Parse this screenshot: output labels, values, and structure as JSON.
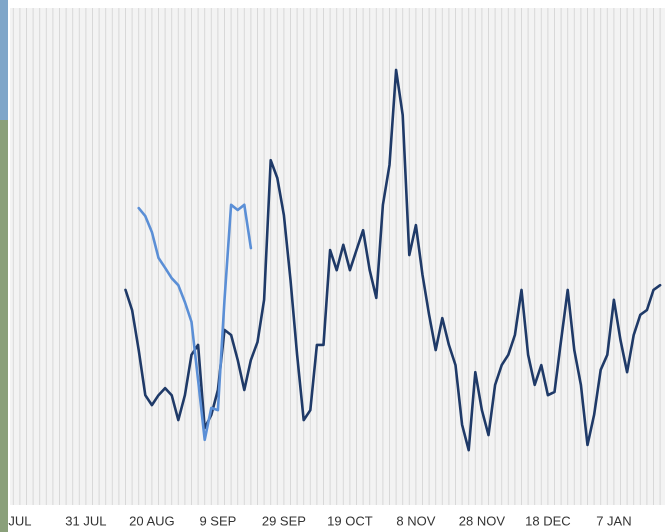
{
  "chart_data": {
    "type": "line",
    "categories": [
      null,
      "JUL",
      null,
      null,
      null,
      null,
      null,
      null,
      null,
      null,
      null,
      "31 JUL",
      null,
      null,
      null,
      null,
      null,
      null,
      null,
      null,
      null,
      "20 AUG",
      null,
      null,
      null,
      null,
      null,
      null,
      null,
      null,
      null,
      "9 SEP",
      null,
      null,
      null,
      null,
      null,
      null,
      null,
      null,
      null,
      "29 SEP",
      null,
      null,
      null,
      null,
      null,
      null,
      null,
      null,
      null,
      "19 OCT",
      null,
      null,
      null,
      null,
      null,
      null,
      null,
      null,
      null,
      "8 NOV",
      null,
      null,
      null,
      null,
      null,
      null,
      null,
      null,
      null,
      "28 NOV",
      null,
      null,
      null,
      null,
      null,
      null,
      null,
      null,
      null,
      "18 DEC",
      null,
      null,
      null,
      null,
      null,
      null,
      null,
      null,
      null,
      "7 JAN",
      null,
      null,
      null,
      null,
      null,
      null,
      null
    ],
    "series": [
      {
        "color": "#1f3a68",
        "values": [
          null,
          null,
          null,
          null,
          null,
          null,
          null,
          null,
          null,
          null,
          null,
          null,
          null,
          null,
          null,
          null,
          null,
          44.7,
          40.4,
          31.9,
          22.3,
          20.2,
          22.3,
          23.8,
          22.3,
          17,
          22.3,
          30.9,
          33,
          15.3,
          18.1,
          23.4,
          36.2,
          35.1,
          29.8,
          23.4,
          29.8,
          33.6,
          42.6,
          72.3,
          68.5,
          60.6,
          46.8,
          30.9,
          17,
          19.1,
          33,
          33,
          53.2,
          48.9,
          54.3,
          48.9,
          53.2,
          57.4,
          48.9,
          43,
          62.8,
          71.3,
          91.5,
          81.9,
          52.1,
          58.5,
          47.9,
          39.4,
          31.9,
          38.7,
          33,
          28.7,
          16,
          10.6,
          27.2,
          19.1,
          13.8,
          24.5,
          28.7,
          30.9,
          35.1,
          44.7,
          30.9,
          24.5,
          28.7,
          22.3,
          23,
          34,
          44.7,
          31.9,
          24.5,
          11.7,
          18.1,
          27.7,
          30.9,
          42.6,
          34,
          27.2,
          35.1,
          39.4,
          40.4,
          44.7,
          45.7
        ]
      },
      {
        "color": "#5b8fd6",
        "values": [
          null,
          null,
          null,
          null,
          null,
          null,
          null,
          null,
          null,
          null,
          null,
          null,
          null,
          null,
          null,
          null,
          null,
          null,
          null,
          62.1,
          60.4,
          57,
          51.5,
          49.4,
          47.2,
          45.7,
          42.1,
          37.9,
          25.5,
          12.8,
          19.6,
          19.1,
          42.6,
          62.8,
          61.7,
          62.8,
          53.6,
          null,
          null,
          null,
          null,
          null,
          null,
          null,
          null,
          null,
          null,
          null,
          null,
          null,
          null,
          null,
          null,
          null,
          null,
          null,
          null,
          null,
          null,
          null,
          null,
          null,
          null,
          null,
          null,
          null,
          null,
          null,
          null,
          null,
          null,
          null,
          null,
          null,
          null,
          null,
          null,
          null,
          null,
          null,
          null,
          null,
          null,
          null,
          null,
          null,
          null,
          null,
          null,
          null,
          null,
          null,
          null,
          null,
          null,
          null,
          null,
          null,
          null
        ]
      }
    ],
    "ylim": [
      0,
      100
    ],
    "grid": true
  }
}
